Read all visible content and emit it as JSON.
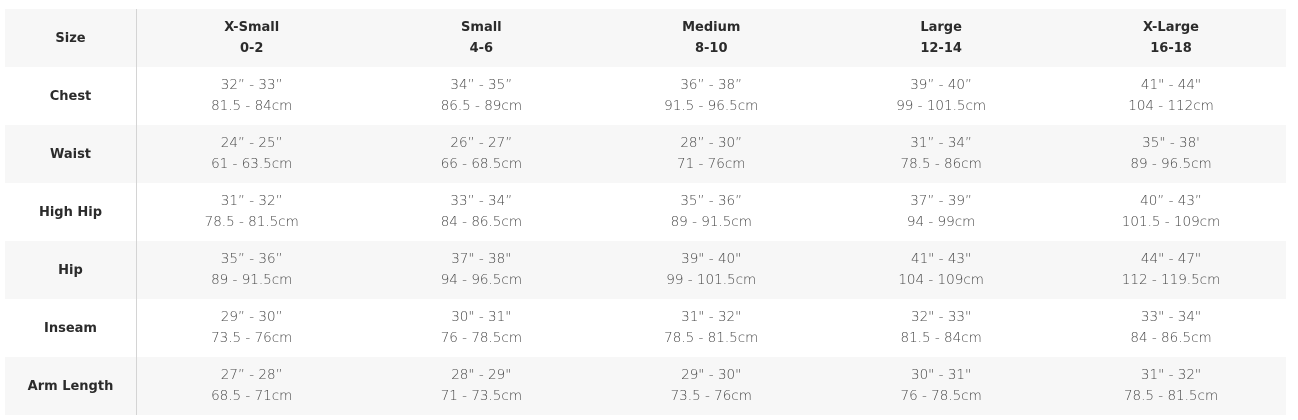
{
  "header": {
    "label": "Size",
    "sizes": [
      {
        "name": "X-Small",
        "range": "0-2"
      },
      {
        "name": "Small",
        "range": "4-6"
      },
      {
        "name": "Medium",
        "range": "8-10"
      },
      {
        "name": "Large",
        "range": "12-14"
      },
      {
        "name": "X-Large",
        "range": "16-18"
      }
    ]
  },
  "rows": [
    {
      "label": "Chest",
      "cells": [
        {
          "in": "32” - 33”",
          "cm": "81.5 - 84cm"
        },
        {
          "in": "34” - 35”",
          "cm": "86.5 - 89cm"
        },
        {
          "in": "36” - 38”",
          "cm": "91.5 - 96.5cm"
        },
        {
          "in": "39” - 40”",
          "cm": "99 - 101.5cm"
        },
        {
          "in": "41\" - 44\"",
          "cm": "104 - 112cm"
        }
      ]
    },
    {
      "label": "Waist",
      "cells": [
        {
          "in": "24” - 25”",
          "cm": "61 - 63.5cm"
        },
        {
          "in": "26” - 27”",
          "cm": "66 - 68.5cm"
        },
        {
          "in": "28” - 30”",
          "cm": "71 - 76cm"
        },
        {
          "in": "31” - 34”",
          "cm": "78.5 - 86cm"
        },
        {
          "in": "35\" - 38'",
          "cm": "89 - 96.5cm"
        }
      ]
    },
    {
      "label": "High Hip",
      "cells": [
        {
          "in": "31” - 32”",
          "cm": "78.5 - 81.5cm"
        },
        {
          "in": "33” - 34”",
          "cm": "84 - 86.5cm"
        },
        {
          "in": "35” - 36”",
          "cm": "89 - 91.5cm"
        },
        {
          "in": "37” - 39”",
          "cm": "94 - 99cm"
        },
        {
          "in": "40” - 43”",
          "cm": "101.5 - 109cm"
        }
      ]
    },
    {
      "label": "Hip",
      "cells": [
        {
          "in": "35” - 36”",
          "cm": "89 - 91.5cm"
        },
        {
          "in": "37\" - 38\"",
          "cm": "94 - 96.5cm"
        },
        {
          "in": "39\" - 40\"",
          "cm": "99 - 101.5cm"
        },
        {
          "in": "41\" - 43\"",
          "cm": "104 - 109cm"
        },
        {
          "in": "44\" - 47\"",
          "cm": "112 - 119.5cm"
        }
      ]
    },
    {
      "label": "Inseam",
      "cells": [
        {
          "in": "29” - 30”",
          "cm": "73.5 - 76cm"
        },
        {
          "in": "30\" - 31\"",
          "cm": "76 - 78.5cm"
        },
        {
          "in": "31\" - 32\"",
          "cm": "78.5 - 81.5cm"
        },
        {
          "in": "32\" - 33\"",
          "cm": "81.5 - 84cm"
        },
        {
          "in": "33\" - 34\"",
          "cm": "84 - 86.5cm"
        }
      ]
    },
    {
      "label": "Arm Length",
      "cells": [
        {
          "in": "27” - 28”",
          "cm": "68.5 - 71cm"
        },
        {
          "in": "28\" - 29\"",
          "cm": "71 - 73.5cm"
        },
        {
          "in": "29\" - 30\"",
          "cm": "73.5 - 76cm"
        },
        {
          "in": "30\" - 31\"",
          "cm": "76 - 78.5cm"
        },
        {
          "in": "31\" - 32\"",
          "cm": "78.5 - 81.5cm"
        }
      ]
    }
  ]
}
